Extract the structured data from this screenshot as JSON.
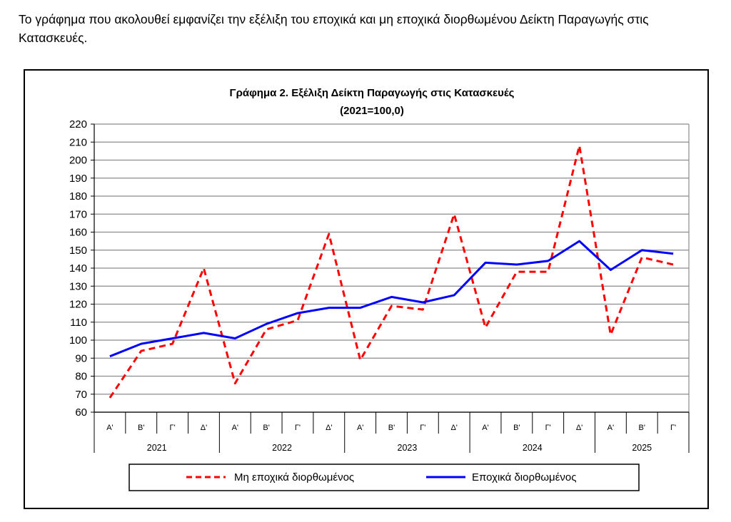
{
  "intro_text": "Το γράφημα που ακολουθεί εμφανίζει την εξέλιξη του εποχικά και μη εποχικά διορθωμένου Δείκτη Παραγωγής στις Κατασκευές.",
  "chart_data": {
    "type": "line",
    "title": "Γράφημα 2. Εξέλιξη  Δείκτη  Παραγωγής  στις Κατασκευές",
    "subtitle": "(2021=100,0)",
    "xlabel": "",
    "ylabel": "",
    "ylim": [
      60,
      220
    ],
    "ytick_step": 10,
    "grid": "horizontal",
    "legend_position": "bottom",
    "categories": [
      "Α'",
      "Β'",
      "Γ'",
      "Δ'",
      "Α'",
      "Β'",
      "Γ'",
      "Δ'",
      "Α'",
      "Β'",
      "Γ'",
      "Δ'",
      "Α'",
      "Β'",
      "Γ'",
      "Δ'",
      "Α'",
      "Β'",
      "Γ'"
    ],
    "groups": [
      {
        "label": "2021",
        "count": 4
      },
      {
        "label": "2022",
        "count": 4
      },
      {
        "label": "2023",
        "count": 4
      },
      {
        "label": "2024",
        "count": 4
      },
      {
        "label": "2025",
        "count": 3
      }
    ],
    "series": [
      {
        "name": "Μη εποχικά διορθωμένος",
        "color": "#ff0000",
        "style": "dashed",
        "values": [
          68,
          94,
          98,
          140,
          76,
          106,
          111,
          159,
          89,
          119,
          117,
          170,
          107,
          138,
          138,
          208,
          103,
          146,
          142
        ]
      },
      {
        "name": "Εποχικά διορθωμένος",
        "color": "#0000ff",
        "style": "solid",
        "values": [
          91,
          98,
          101,
          104,
          101,
          109,
          115,
          118,
          118,
          124,
          121,
          125,
          143,
          142,
          144,
          155,
          139,
          150,
          148
        ]
      }
    ]
  }
}
